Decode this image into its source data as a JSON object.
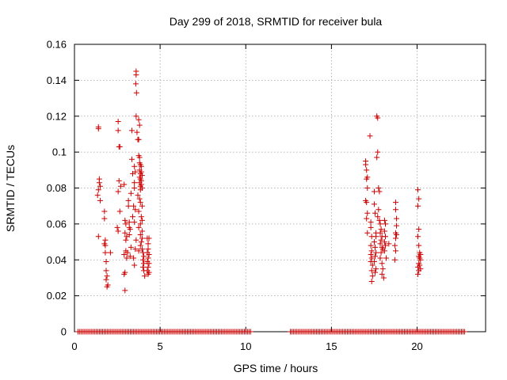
{
  "chart_data": {
    "type": "scatter",
    "title": "Day 299 of 2018, SRMTID for receiver bula",
    "xlabel": "GPS time / hours",
    "ylabel": "SRMTID / TECUs",
    "xlim": [
      0,
      24
    ],
    "ylim": [
      0,
      0.16
    ],
    "x_ticks": [
      0,
      5,
      10,
      15,
      20
    ],
    "x_tick_labels": [
      "0",
      "5",
      "10",
      "15",
      "20"
    ],
    "y_ticks": [
      0,
      0.02,
      0.04,
      0.06,
      0.08,
      0.1,
      0.12,
      0.14,
      0.16
    ],
    "y_tick_labels": [
      "0",
      "0.02",
      "0.04",
      "0.06",
      "0.08",
      "0.1",
      "0.12",
      "0.14",
      "0.16"
    ],
    "grid": true,
    "marker": "+",
    "series": [
      {
        "name": "SRMTID",
        "color": "#cc0000",
        "points": [
          [
            1.4,
            0.114
          ],
          [
            1.4,
            0.113
          ],
          [
            1.45,
            0.085
          ],
          [
            1.45,
            0.083
          ],
          [
            1.5,
            0.081
          ],
          [
            1.4,
            0.079
          ],
          [
            1.35,
            0.076
          ],
          [
            1.5,
            0.073
          ],
          [
            1.4,
            0.053
          ],
          [
            1.75,
            0.067
          ],
          [
            1.75,
            0.063
          ],
          [
            1.8,
            0.051
          ],
          [
            1.75,
            0.049
          ],
          [
            1.8,
            0.048
          ],
          [
            1.8,
            0.044
          ],
          [
            1.85,
            0.039
          ],
          [
            1.85,
            0.034
          ],
          [
            1.9,
            0.031
          ],
          [
            1.85,
            0.029
          ],
          [
            1.95,
            0.026
          ],
          [
            1.9,
            0.025
          ],
          [
            2.1,
            0.044
          ],
          [
            2.55,
            0.117
          ],
          [
            2.55,
            0.112
          ],
          [
            2.6,
            0.103
          ],
          [
            2.65,
            0.103
          ],
          [
            2.6,
            0.084
          ],
          [
            2.7,
            0.081
          ],
          [
            2.55,
            0.078
          ],
          [
            2.65,
            0.067
          ],
          [
            2.5,
            0.058
          ],
          [
            2.55,
            0.056
          ],
          [
            2.9,
            0.082
          ],
          [
            2.95,
            0.062
          ],
          [
            3.0,
            0.06
          ],
          [
            2.95,
            0.055
          ],
          [
            3.05,
            0.053
          ],
          [
            3.0,
            0.051
          ],
          [
            3.0,
            0.045
          ],
          [
            2.9,
            0.043
          ],
          [
            3.05,
            0.041
          ],
          [
            2.95,
            0.033
          ],
          [
            2.9,
            0.032
          ],
          [
            2.95,
            0.023
          ],
          [
            3.15,
            0.073
          ],
          [
            3.15,
            0.07
          ],
          [
            3.2,
            0.061
          ],
          [
            3.2,
            0.058
          ],
          [
            3.25,
            0.057
          ],
          [
            3.2,
            0.054
          ],
          [
            3.3,
            0.047
          ],
          [
            3.1,
            0.044
          ],
          [
            3.25,
            0.042
          ],
          [
            3.3,
            0.077
          ],
          [
            3.35,
            0.112
          ],
          [
            3.35,
            0.096
          ],
          [
            3.4,
            0.088
          ],
          [
            3.5,
            0.092
          ],
          [
            3.55,
            0.089
          ],
          [
            3.5,
            0.083
          ],
          [
            3.5,
            0.08
          ],
          [
            3.45,
            0.07
          ],
          [
            3.55,
            0.068
          ],
          [
            3.4,
            0.064
          ],
          [
            3.5,
            0.061
          ],
          [
            3.6,
            0.051
          ],
          [
            3.55,
            0.046
          ],
          [
            3.45,
            0.041
          ],
          [
            3.5,
            0.037
          ],
          [
            3.6,
            0.145
          ],
          [
            3.6,
            0.143
          ],
          [
            3.58,
            0.138
          ],
          [
            3.62,
            0.133
          ],
          [
            3.6,
            0.12
          ],
          [
            3.65,
            0.111
          ],
          [
            3.7,
            0.107
          ],
          [
            3.75,
            0.118
          ],
          [
            3.75,
            0.107
          ],
          [
            3.8,
            0.115
          ],
          [
            3.75,
            0.098
          ],
          [
            3.8,
            0.097
          ],
          [
            3.8,
            0.094
          ],
          [
            3.85,
            0.093
          ],
          [
            3.9,
            0.092
          ],
          [
            3.8,
            0.09
          ],
          [
            3.9,
            0.089
          ],
          [
            3.85,
            0.088
          ],
          [
            3.95,
            0.087
          ],
          [
            3.8,
            0.086
          ],
          [
            3.85,
            0.085
          ],
          [
            3.9,
            0.084
          ],
          [
            3.8,
            0.083
          ],
          [
            3.9,
            0.082
          ],
          [
            3.85,
            0.081
          ],
          [
            3.95,
            0.08
          ],
          [
            3.85,
            0.079
          ],
          [
            3.7,
            0.076
          ],
          [
            3.8,
            0.074
          ],
          [
            3.85,
            0.072
          ],
          [
            3.95,
            0.07
          ],
          [
            3.75,
            0.067
          ],
          [
            3.9,
            0.064
          ],
          [
            3.95,
            0.062
          ],
          [
            3.85,
            0.06
          ],
          [
            3.75,
            0.058
          ],
          [
            3.95,
            0.056
          ],
          [
            3.85,
            0.054
          ],
          [
            3.95,
            0.052
          ],
          [
            3.9,
            0.05
          ],
          [
            3.85,
            0.048
          ],
          [
            3.95,
            0.046
          ],
          [
            3.75,
            0.045
          ],
          [
            4.0,
            0.044
          ],
          [
            4.05,
            0.042
          ],
          [
            4.0,
            0.04
          ],
          [
            4.05,
            0.038
          ],
          [
            4.0,
            0.036
          ],
          [
            4.05,
            0.034
          ],
          [
            4.1,
            0.031
          ],
          [
            4.25,
            0.052
          ],
          [
            4.3,
            0.049
          ],
          [
            4.35,
            0.052
          ],
          [
            4.3,
            0.046
          ],
          [
            4.25,
            0.044
          ],
          [
            4.35,
            0.043
          ],
          [
            4.3,
            0.041
          ],
          [
            4.25,
            0.039
          ],
          [
            4.35,
            0.038
          ],
          [
            4.3,
            0.036
          ],
          [
            4.25,
            0.034
          ],
          [
            4.35,
            0.033
          ],
          [
            4.3,
            0.032
          ],
          [
            17.0,
            0.095
          ],
          [
            17.0,
            0.093
          ],
          [
            17.05,
            0.09
          ],
          [
            17.1,
            0.086
          ],
          [
            17.05,
            0.085
          ],
          [
            17.1,
            0.08
          ],
          [
            17.0,
            0.073
          ],
          [
            17.05,
            0.072
          ],
          [
            17.1,
            0.066
          ],
          [
            17.05,
            0.063
          ],
          [
            17.1,
            0.055
          ],
          [
            17.25,
            0.109
          ],
          [
            17.3,
            0.061
          ],
          [
            17.3,
            0.058
          ],
          [
            17.35,
            0.053
          ],
          [
            17.3,
            0.048
          ],
          [
            17.35,
            0.045
          ],
          [
            17.3,
            0.043
          ],
          [
            17.35,
            0.041
          ],
          [
            17.3,
            0.039
          ],
          [
            17.4,
            0.037
          ],
          [
            17.35,
            0.034
          ],
          [
            17.4,
            0.031
          ],
          [
            17.35,
            0.028
          ],
          [
            17.5,
            0.078
          ],
          [
            17.5,
            0.071
          ],
          [
            17.55,
            0.066
          ],
          [
            17.6,
            0.055
          ],
          [
            17.6,
            0.053
          ],
          [
            17.5,
            0.05
          ],
          [
            17.55,
            0.047
          ],
          [
            17.6,
            0.044
          ],
          [
            17.55,
            0.042
          ],
          [
            17.5,
            0.039
          ],
          [
            17.6,
            0.035
          ],
          [
            17.55,
            0.033
          ],
          [
            17.65,
            0.12
          ],
          [
            17.7,
            0.119
          ],
          [
            17.7,
            0.1
          ],
          [
            17.65,
            0.097
          ],
          [
            17.75,
            0.08
          ],
          [
            17.8,
            0.078
          ],
          [
            17.75,
            0.068
          ],
          [
            17.7,
            0.064
          ],
          [
            17.8,
            0.062
          ],
          [
            17.85,
            0.06
          ],
          [
            17.9,
            0.057
          ],
          [
            17.85,
            0.055
          ],
          [
            17.95,
            0.053
          ],
          [
            17.9,
            0.051
          ],
          [
            17.85,
            0.049
          ],
          [
            17.95,
            0.047
          ],
          [
            18.0,
            0.046
          ],
          [
            17.9,
            0.044
          ],
          [
            17.85,
            0.041
          ],
          [
            17.95,
            0.038
          ],
          [
            18.0,
            0.035
          ],
          [
            17.95,
            0.032
          ],
          [
            18.05,
            0.03
          ],
          [
            18.1,
            0.062
          ],
          [
            18.15,
            0.06
          ],
          [
            18.1,
            0.056
          ],
          [
            18.15,
            0.053
          ],
          [
            18.1,
            0.05
          ],
          [
            18.15,
            0.048
          ],
          [
            18.1,
            0.045
          ],
          [
            18.2,
            0.041
          ],
          [
            18.35,
            0.049
          ],
          [
            18.75,
            0.072
          ],
          [
            18.75,
            0.068
          ],
          [
            18.8,
            0.063
          ],
          [
            18.8,
            0.059
          ],
          [
            18.75,
            0.055
          ],
          [
            18.8,
            0.054
          ],
          [
            18.75,
            0.052
          ],
          [
            18.7,
            0.048
          ],
          [
            18.75,
            0.045
          ],
          [
            18.7,
            0.04
          ],
          [
            20.05,
            0.079
          ],
          [
            20.1,
            0.074
          ],
          [
            20.05,
            0.07
          ],
          [
            20.1,
            0.057
          ],
          [
            20.05,
            0.053
          ],
          [
            20.1,
            0.048
          ],
          [
            20.15,
            0.044
          ],
          [
            20.2,
            0.043
          ],
          [
            20.1,
            0.042
          ],
          [
            20.15,
            0.041
          ],
          [
            20.2,
            0.04
          ],
          [
            20.1,
            0.038
          ],
          [
            20.15,
            0.037
          ],
          [
            20.05,
            0.036
          ],
          [
            20.2,
            0.035
          ],
          [
            20.1,
            0.034
          ],
          [
            20.05,
            0.032
          ]
        ]
      }
    ],
    "zero_coverage_ranges": [
      [
        0.2,
        10.3
      ],
      [
        12.6,
        22.8
      ]
    ]
  }
}
